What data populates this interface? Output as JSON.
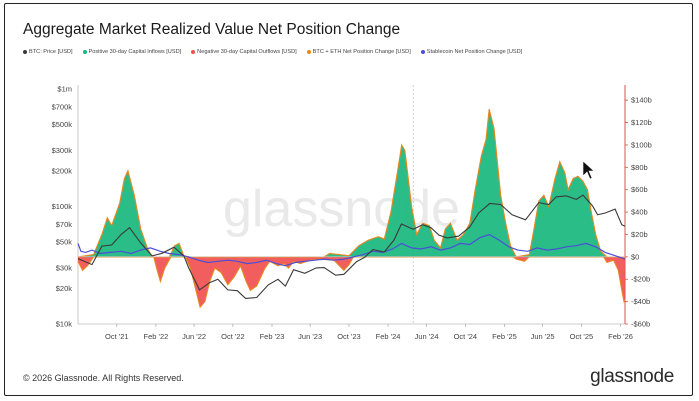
{
  "title": "Aggregate Market Realized Value Net Position Change",
  "legend": [
    {
      "label": "BTC: Price [USD]",
      "color": "#3a3a3a"
    },
    {
      "label": "Positive 30-day Capital Inflows [USD]",
      "color": "#19b77e"
    },
    {
      "label": "Negative 30-day Capital Outflows [USD]",
      "color": "#f0504f"
    },
    {
      "label": "BTC + ETH Net Position Change [USD]",
      "color": "#e8871e"
    },
    {
      "label": "Stablecoin Net Position Change [USD]",
      "color": "#4b4fd6"
    }
  ],
  "watermark": "glassnode",
  "footer": {
    "copyright": "© 2026 Glassnode. All Rights Reserved.",
    "logo": "glassnode"
  },
  "colors": {
    "price": "#3a3a3a",
    "inflow": "#19b77e",
    "outflow": "#f0504f",
    "net": "#e8871e",
    "stable": "#4b4fd6",
    "right_axis": "#d9534f"
  },
  "chart_data": {
    "type": "area",
    "left_axis": {
      "scale": "log",
      "ticks": [
        {
          "label": "$1m",
          "value": 1000000
        },
        {
          "label": "$700k",
          "value": 700000
        },
        {
          "label": "$500k",
          "value": 500000
        },
        {
          "label": "$300k",
          "value": 300000
        },
        {
          "label": "$200k",
          "value": 200000
        },
        {
          "label": "$100k",
          "value": 100000
        },
        {
          "label": "$70k",
          "value": 70000
        },
        {
          "label": "$50k",
          "value": 50000
        },
        {
          "label": "$30k",
          "value": 30000
        },
        {
          "label": "$20k",
          "value": 20000
        },
        {
          "label": "$10k",
          "value": 10000
        }
      ],
      "ylim": [
        10000,
        1000000
      ]
    },
    "right_axis": {
      "scale": "linear",
      "ticks": [
        {
          "label": "$140b",
          "value": 140
        },
        {
          "label": "$120b",
          "value": 120
        },
        {
          "label": "$100b",
          "value": 100
        },
        {
          "label": "$80b",
          "value": 80
        },
        {
          "label": "$60b",
          "value": 60
        },
        {
          "label": "$40b",
          "value": 40
        },
        {
          "label": "$20b",
          "value": 20
        },
        {
          "label": "$0",
          "value": 0
        },
        {
          "label": "-$20b",
          "value": -20
        },
        {
          "label": "-$40b",
          "value": -40
        },
        {
          "label": "-$60b",
          "value": -60
        }
      ],
      "ylim": [
        -60,
        150
      ]
    },
    "x_axis": {
      "ticks": [
        {
          "label": "Oct '21",
          "date": "2021-10-01"
        },
        {
          "label": "Feb '22",
          "date": "2022-02-01"
        },
        {
          "label": "Jun '22",
          "date": "2022-06-01"
        },
        {
          "label": "Oct '22",
          "date": "2022-10-01"
        },
        {
          "label": "Feb '23",
          "date": "2023-02-01"
        },
        {
          "label": "Jun '23",
          "date": "2023-06-01"
        },
        {
          "label": "Oct '23",
          "date": "2023-10-01"
        },
        {
          "label": "Feb '24",
          "date": "2024-02-01"
        },
        {
          "label": "Jun '24",
          "date": "2024-06-01"
        },
        {
          "label": "Oct '24",
          "date": "2024-10-01"
        },
        {
          "label": "Feb '25",
          "date": "2025-02-01"
        },
        {
          "label": "Jun '25",
          "date": "2025-06-01"
        },
        {
          "label": "Oct '25",
          "date": "2025-10-01"
        },
        {
          "label": "Feb '26",
          "date": "2026-02-01"
        }
      ],
      "range": [
        "2021-06-01",
        "2026-02-15"
      ]
    },
    "grid": false,
    "series": [
      {
        "name": "BTC: Price [USD]",
        "axis": "left",
        "points": [
          [
            "2021-06-01",
            36000
          ],
          [
            "2021-07-15",
            32000
          ],
          [
            "2021-08-15",
            46000
          ],
          [
            "2021-09-15",
            47000
          ],
          [
            "2021-10-15",
            58000
          ],
          [
            "2021-11-10",
            66000
          ],
          [
            "2021-12-15",
            49000
          ],
          [
            "2022-01-20",
            38000
          ],
          [
            "2022-02-20",
            40000
          ],
          [
            "2022-03-30",
            45000
          ],
          [
            "2022-04-30",
            38000
          ],
          [
            "2022-05-15",
            30000
          ],
          [
            "2022-06-18",
            19500
          ],
          [
            "2022-07-20",
            22500
          ],
          [
            "2022-08-15",
            24000
          ],
          [
            "2022-09-15",
            19500
          ],
          [
            "2022-10-15",
            19200
          ],
          [
            "2022-11-10",
            16500
          ],
          [
            "2022-12-15",
            16800
          ],
          [
            "2023-01-20",
            21500
          ],
          [
            "2023-02-20",
            24000
          ],
          [
            "2023-03-15",
            21000
          ],
          [
            "2023-04-10",
            29000
          ],
          [
            "2023-05-15",
            27000
          ],
          [
            "2023-06-20",
            30000
          ],
          [
            "2023-07-15",
            30200
          ],
          [
            "2023-08-20",
            26000
          ],
          [
            "2023-09-15",
            26500
          ],
          [
            "2023-10-25",
            34000
          ],
          [
            "2023-11-20",
            37000
          ],
          [
            "2023-12-15",
            43000
          ],
          [
            "2024-01-20",
            41000
          ],
          [
            "2024-02-20",
            52000
          ],
          [
            "2024-03-14",
            71000
          ],
          [
            "2024-04-20",
            64000
          ],
          [
            "2024-05-20",
            70000
          ],
          [
            "2024-06-15",
            66000
          ],
          [
            "2024-07-10",
            57000
          ],
          [
            "2024-08-05",
            54000
          ],
          [
            "2024-09-10",
            56000
          ],
          [
            "2024-10-15",
            67000
          ],
          [
            "2024-11-12",
            88000
          ],
          [
            "2024-12-17",
            106000
          ],
          [
            "2025-01-20",
            104000
          ],
          [
            "2025-02-25",
            85000
          ],
          [
            "2025-04-08",
            77000
          ],
          [
            "2025-05-20",
            108000
          ],
          [
            "2025-06-20",
            104000
          ],
          [
            "2025-07-14",
            121000
          ],
          [
            "2025-08-14",
            123000
          ],
          [
            "2025-09-15",
            115000
          ],
          [
            "2025-10-06",
            125000
          ],
          [
            "2025-11-05",
            101000
          ],
          [
            "2025-11-21",
            85000
          ],
          [
            "2025-12-15",
            88000
          ],
          [
            "2026-01-15",
            95000
          ],
          [
            "2026-02-05",
            70000
          ],
          [
            "2026-02-15",
            68000
          ]
        ]
      },
      {
        "name": "Positive 30-day Capital Inflows [USD]",
        "axis": "right",
        "points": [
          [
            "2021-06-01",
            0
          ],
          [
            "2021-07-20",
            2
          ],
          [
            "2021-08-15",
            20
          ],
          [
            "2021-09-01",
            35
          ],
          [
            "2021-09-15",
            28
          ],
          [
            "2021-10-10",
            48
          ],
          [
            "2021-10-25",
            70
          ],
          [
            "2021-11-05",
            77
          ],
          [
            "2021-11-25",
            55
          ],
          [
            "2021-12-15",
            25
          ],
          [
            "2022-01-05",
            8
          ],
          [
            "2022-01-20",
            0
          ],
          [
            "2022-03-15",
            0
          ],
          [
            "2022-04-01",
            10
          ],
          [
            "2022-04-15",
            12
          ],
          [
            "2022-05-01",
            0
          ],
          [
            "2023-07-15",
            0
          ],
          [
            "2023-08-01",
            3
          ],
          [
            "2023-10-01",
            1
          ],
          [
            "2023-11-01",
            10
          ],
          [
            "2023-12-01",
            15
          ],
          [
            "2024-01-01",
            18
          ],
          [
            "2024-01-20",
            16
          ],
          [
            "2024-02-10",
            40
          ],
          [
            "2024-03-01",
            75
          ],
          [
            "2024-03-15",
            100
          ],
          [
            "2024-03-25",
            95
          ],
          [
            "2024-04-15",
            45
          ],
          [
            "2024-05-01",
            20
          ],
          [
            "2024-05-20",
            30
          ],
          [
            "2024-06-10",
            28
          ],
          [
            "2024-06-25",
            15
          ],
          [
            "2024-07-15",
            8
          ],
          [
            "2024-07-30",
            25
          ],
          [
            "2024-08-15",
            30
          ],
          [
            "2024-09-05",
            15
          ],
          [
            "2024-09-25",
            20
          ],
          [
            "2024-10-15",
            30
          ],
          [
            "2024-11-01",
            60
          ],
          [
            "2024-11-20",
            90
          ],
          [
            "2024-12-05",
            105
          ],
          [
            "2024-12-15",
            132
          ],
          [
            "2024-12-30",
            115
          ],
          [
            "2025-01-20",
            55
          ],
          [
            "2025-02-05",
            30
          ],
          [
            "2025-02-20",
            10
          ],
          [
            "2025-03-10",
            0
          ],
          [
            "2025-04-20",
            2
          ],
          [
            "2025-05-05",
            25
          ],
          [
            "2025-05-20",
            50
          ],
          [
            "2025-06-05",
            55
          ],
          [
            "2025-06-20",
            45
          ],
          [
            "2025-07-10",
            70
          ],
          [
            "2025-07-25",
            85
          ],
          [
            "2025-08-10",
            75
          ],
          [
            "2025-08-20",
            60
          ],
          [
            "2025-09-05",
            70
          ],
          [
            "2025-09-20",
            72
          ],
          [
            "2025-10-05",
            68
          ],
          [
            "2025-10-20",
            60
          ],
          [
            "2025-11-01",
            40
          ],
          [
            "2025-11-15",
            20
          ],
          [
            "2025-12-01",
            5
          ],
          [
            "2025-12-20",
            0
          ],
          [
            "2026-02-15",
            0
          ]
        ]
      },
      {
        "name": "Negative 30-day Capital Outflows [USD]",
        "axis": "right",
        "points": [
          [
            "2021-06-01",
            -4
          ],
          [
            "2021-06-15",
            -12
          ],
          [
            "2021-07-01",
            -8
          ],
          [
            "2021-07-20",
            0
          ],
          [
            "2022-01-25",
            0
          ],
          [
            "2022-02-05",
            -12
          ],
          [
            "2022-02-15",
            -22
          ],
          [
            "2022-03-01",
            -10
          ],
          [
            "2022-03-20",
            0
          ],
          [
            "2022-05-05",
            0
          ],
          [
            "2022-05-20",
            -10
          ],
          [
            "2022-06-05",
            -28
          ],
          [
            "2022-06-20",
            -45
          ],
          [
            "2022-07-05",
            -40
          ],
          [
            "2022-07-20",
            -22
          ],
          [
            "2022-08-05",
            -10
          ],
          [
            "2022-08-25",
            -14
          ],
          [
            "2022-09-15",
            -25
          ],
          [
            "2022-10-05",
            -18
          ],
          [
            "2022-10-25",
            -8
          ],
          [
            "2022-11-12",
            -22
          ],
          [
            "2022-11-25",
            -30
          ],
          [
            "2022-12-15",
            -26
          ],
          [
            "2023-01-10",
            -10
          ],
          [
            "2023-01-25",
            -4
          ],
          [
            "2023-02-20",
            -8
          ],
          [
            "2023-03-10",
            -6
          ],
          [
            "2023-03-25",
            -10
          ],
          [
            "2023-04-10",
            -4
          ],
          [
            "2023-05-01",
            -6
          ],
          [
            "2023-06-01",
            -3
          ],
          [
            "2023-07-01",
            -2
          ],
          [
            "2023-08-15",
            -3
          ],
          [
            "2023-09-15",
            -12
          ],
          [
            "2023-10-01",
            -7
          ],
          [
            "2023-10-15",
            0
          ],
          [
            "2025-02-28",
            0
          ],
          [
            "2025-03-10",
            -2
          ],
          [
            "2025-04-05",
            -4
          ],
          [
            "2025-04-20",
            0
          ],
          [
            "2025-12-10",
            0
          ],
          [
            "2025-12-20",
            -5
          ],
          [
            "2026-01-10",
            -3
          ],
          [
            "2026-01-25",
            -12
          ],
          [
            "2026-02-05",
            -30
          ],
          [
            "2026-02-12",
            -40
          ],
          [
            "2026-02-15",
            -38
          ]
        ]
      },
      {
        "name": "Stablecoin Net Position Change [USD]",
        "axis": "right",
        "points": [
          [
            "2021-06-01",
            12
          ],
          [
            "2021-06-10",
            5
          ],
          [
            "2021-06-25",
            4
          ],
          [
            "2021-07-15",
            6
          ],
          [
            "2021-08-10",
            3
          ],
          [
            "2021-09-10",
            4
          ],
          [
            "2021-10-15",
            5
          ],
          [
            "2021-11-15",
            3
          ],
          [
            "2021-12-15",
            6
          ],
          [
            "2022-01-15",
            8
          ],
          [
            "2022-02-15",
            5
          ],
          [
            "2022-03-15",
            3
          ],
          [
            "2022-04-15",
            2
          ],
          [
            "2022-05-15",
            0
          ],
          [
            "2022-06-15",
            -3
          ],
          [
            "2022-07-15",
            -5
          ],
          [
            "2022-08-15",
            -4
          ],
          [
            "2022-09-15",
            -3
          ],
          [
            "2022-10-15",
            -4
          ],
          [
            "2022-11-15",
            -6
          ],
          [
            "2022-12-15",
            -5
          ],
          [
            "2023-01-15",
            -3
          ],
          [
            "2023-02-15",
            -6
          ],
          [
            "2023-03-15",
            -8
          ],
          [
            "2023-04-15",
            -5
          ],
          [
            "2023-05-15",
            -4
          ],
          [
            "2023-06-15",
            -3
          ],
          [
            "2023-07-15",
            -2
          ],
          [
            "2023-08-15",
            -3
          ],
          [
            "2023-09-15",
            -2
          ],
          [
            "2023-10-15",
            0
          ],
          [
            "2023-11-15",
            2
          ],
          [
            "2023-12-15",
            5
          ],
          [
            "2024-01-15",
            4
          ],
          [
            "2024-02-15",
            7
          ],
          [
            "2024-03-15",
            12
          ],
          [
            "2024-04-15",
            8
          ],
          [
            "2024-05-15",
            7
          ],
          [
            "2024-06-15",
            9
          ],
          [
            "2024-07-15",
            6
          ],
          [
            "2024-08-15",
            8
          ],
          [
            "2024-09-15",
            12
          ],
          [
            "2024-10-15",
            11
          ],
          [
            "2024-11-15",
            17
          ],
          [
            "2024-12-15",
            20
          ],
          [
            "2025-01-15",
            15
          ],
          [
            "2025-02-15",
            9
          ],
          [
            "2025-03-15",
            6
          ],
          [
            "2025-04-15",
            5
          ],
          [
            "2025-05-15",
            8
          ],
          [
            "2025-06-15",
            6
          ],
          [
            "2025-07-15",
            7
          ],
          [
            "2025-08-15",
            9
          ],
          [
            "2025-09-15",
            10
          ],
          [
            "2025-10-15",
            12
          ],
          [
            "2025-11-15",
            9
          ],
          [
            "2025-12-15",
            4
          ],
          [
            "2026-01-15",
            1
          ],
          [
            "2026-02-15",
            -2
          ]
        ]
      }
    ],
    "annotations": [
      {
        "type": "vertical-dashed-line",
        "date": "2024-04-20"
      }
    ]
  }
}
